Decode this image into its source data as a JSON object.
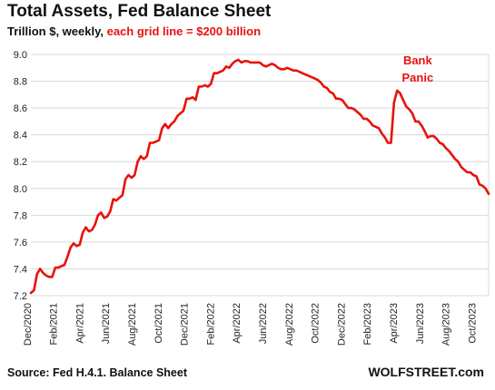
{
  "header": {
    "title": "Total Assets, Fed Balance Sheet",
    "subtitle_plain": "Trillion $, weekly, ",
    "subtitle_red": "each grid line = $200 billion"
  },
  "footer": {
    "source": "Source: Fed H.4.1. Balance Sheet",
    "brand": "WOLFSTREET.com"
  },
  "colors": {
    "line": "#e8120c",
    "grid": "#d9d9d9",
    "annotation": "#e8120c"
  },
  "chart_data": {
    "type": "line",
    "title": "Total Assets, Fed Balance Sheet",
    "subtitle": "Trillion $, weekly, each grid line = $200 billion",
    "ylim": [
      7.2,
      9.0
    ],
    "yticks": [
      "7.2",
      "7.4",
      "7.6",
      "7.8",
      "8.0",
      "8.2",
      "8.4",
      "8.6",
      "8.8",
      "9.0"
    ],
    "xticks": [
      "Dec/2020",
      "Feb/2021",
      "Apr/2021",
      "Jun/2021",
      "Aug/2021",
      "Oct/2021",
      "Dec/2021",
      "Feb/2022",
      "Apr/2022",
      "Jun/2022",
      "Aug/2022",
      "Oct/2022",
      "Dec/2022",
      "Feb/2023",
      "Apr/2023",
      "Jun/2023",
      "Aug/2023",
      "Oct/2023"
    ],
    "grid": true,
    "annotations": [
      {
        "lines": [
          "Bank",
          "Panic"
        ],
        "x": "2023-03-15"
      }
    ],
    "series": [
      {
        "points": [
          [
            "2020-12-02",
            7.22
          ],
          [
            "2020-12-09",
            7.24
          ],
          [
            "2020-12-16",
            7.36
          ],
          [
            "2020-12-23",
            7.4
          ],
          [
            "2020-12-30",
            7.37
          ],
          [
            "2021-01-06",
            7.35
          ],
          [
            "2021-01-13",
            7.34
          ],
          [
            "2021-01-20",
            7.34
          ],
          [
            "2021-01-27",
            7.41
          ],
          [
            "2021-02-03",
            7.41
          ],
          [
            "2021-02-10",
            7.42
          ],
          [
            "2021-02-17",
            7.43
          ],
          [
            "2021-02-24",
            7.49
          ],
          [
            "2021-03-03",
            7.56
          ],
          [
            "2021-03-10",
            7.59
          ],
          [
            "2021-03-17",
            7.57
          ],
          [
            "2021-03-24",
            7.58
          ],
          [
            "2021-03-31",
            7.67
          ],
          [
            "2021-04-07",
            7.71
          ],
          [
            "2021-04-14",
            7.68
          ],
          [
            "2021-04-21",
            7.69
          ],
          [
            "2021-04-28",
            7.73
          ],
          [
            "2021-05-05",
            7.8
          ],
          [
            "2021-05-12",
            7.82
          ],
          [
            "2021-05-19",
            7.78
          ],
          [
            "2021-05-26",
            7.79
          ],
          [
            "2021-06-02",
            7.83
          ],
          [
            "2021-06-09",
            7.92
          ],
          [
            "2021-06-16",
            7.91
          ],
          [
            "2021-06-23",
            7.93
          ],
          [
            "2021-06-30",
            7.95
          ],
          [
            "2021-07-07",
            8.07
          ],
          [
            "2021-07-14",
            8.1
          ],
          [
            "2021-07-21",
            8.08
          ],
          [
            "2021-07-28",
            8.1
          ],
          [
            "2021-08-04",
            8.2
          ],
          [
            "2021-08-11",
            8.24
          ],
          [
            "2021-08-18",
            8.22
          ],
          [
            "2021-08-25",
            8.24
          ],
          [
            "2021-09-01",
            8.34
          ],
          [
            "2021-09-08",
            8.34
          ],
          [
            "2021-09-15",
            8.35
          ],
          [
            "2021-09-22",
            8.36
          ],
          [
            "2021-09-29",
            8.45
          ],
          [
            "2021-10-06",
            8.48
          ],
          [
            "2021-10-13",
            8.45
          ],
          [
            "2021-10-20",
            8.48
          ],
          [
            "2021-10-27",
            8.5
          ],
          [
            "2021-11-03",
            8.54
          ],
          [
            "2021-11-10",
            8.56
          ],
          [
            "2021-11-17",
            8.58
          ],
          [
            "2021-11-24",
            8.67
          ],
          [
            "2021-12-01",
            8.67
          ],
          [
            "2021-12-08",
            8.68
          ],
          [
            "2021-12-15",
            8.66
          ],
          [
            "2021-12-22",
            8.76
          ],
          [
            "2021-12-29",
            8.76
          ],
          [
            "2022-01-05",
            8.77
          ],
          [
            "2022-01-12",
            8.76
          ],
          [
            "2022-01-19",
            8.78
          ],
          [
            "2022-01-26",
            8.86
          ],
          [
            "2022-02-02",
            8.86
          ],
          [
            "2022-02-09",
            8.87
          ],
          [
            "2022-02-16",
            8.88
          ],
          [
            "2022-02-23",
            8.91
          ],
          [
            "2022-03-02",
            8.9
          ],
          [
            "2022-03-09",
            8.93
          ],
          [
            "2022-03-16",
            8.95
          ],
          [
            "2022-03-23",
            8.96
          ],
          [
            "2022-03-30",
            8.94
          ],
          [
            "2022-04-06",
            8.95
          ],
          [
            "2022-04-13",
            8.95
          ],
          [
            "2022-04-20",
            8.94
          ],
          [
            "2022-04-27",
            8.94
          ],
          [
            "2022-05-04",
            8.94
          ],
          [
            "2022-05-11",
            8.94
          ],
          [
            "2022-05-18",
            8.92
          ],
          [
            "2022-05-25",
            8.91
          ],
          [
            "2022-06-01",
            8.92
          ],
          [
            "2022-06-08",
            8.93
          ],
          [
            "2022-06-15",
            8.92
          ],
          [
            "2022-06-22",
            8.9
          ],
          [
            "2022-06-29",
            8.89
          ],
          [
            "2022-07-06",
            8.89
          ],
          [
            "2022-07-13",
            8.9
          ],
          [
            "2022-07-20",
            8.89
          ],
          [
            "2022-07-27",
            8.88
          ],
          [
            "2022-08-03",
            8.88
          ],
          [
            "2022-08-10",
            8.87
          ],
          [
            "2022-08-17",
            8.86
          ],
          [
            "2022-08-24",
            8.85
          ],
          [
            "2022-08-31",
            8.84
          ],
          [
            "2022-09-07",
            8.83
          ],
          [
            "2022-09-14",
            8.82
          ],
          [
            "2022-09-21",
            8.81
          ],
          [
            "2022-09-28",
            8.79
          ],
          [
            "2022-10-05",
            8.76
          ],
          [
            "2022-10-12",
            8.75
          ],
          [
            "2022-10-19",
            8.72
          ],
          [
            "2022-10-26",
            8.71
          ],
          [
            "2022-11-02",
            8.67
          ],
          [
            "2022-11-09",
            8.67
          ],
          [
            "2022-11-16",
            8.66
          ],
          [
            "2022-11-23",
            8.63
          ],
          [
            "2022-11-30",
            8.6
          ],
          [
            "2022-12-07",
            8.6
          ],
          [
            "2022-12-14",
            8.59
          ],
          [
            "2022-12-21",
            8.57
          ],
          [
            "2022-12-28",
            8.55
          ],
          [
            "2023-01-04",
            8.52
          ],
          [
            "2023-01-11",
            8.52
          ],
          [
            "2023-01-18",
            8.5
          ],
          [
            "2023-01-25",
            8.47
          ],
          [
            "2023-02-01",
            8.46
          ],
          [
            "2023-02-08",
            8.45
          ],
          [
            "2023-02-15",
            8.41
          ],
          [
            "2023-02-22",
            8.38
          ],
          [
            "2023-03-01",
            8.34
          ],
          [
            "2023-03-08",
            8.34
          ],
          [
            "2023-03-15",
            8.64
          ],
          [
            "2023-03-22",
            8.73
          ],
          [
            "2023-03-29",
            8.71
          ],
          [
            "2023-04-05",
            8.66
          ],
          [
            "2023-04-12",
            8.61
          ],
          [
            "2023-04-19",
            8.59
          ],
          [
            "2023-04-26",
            8.56
          ],
          [
            "2023-05-03",
            8.5
          ],
          [
            "2023-05-10",
            8.5
          ],
          [
            "2023-05-17",
            8.47
          ],
          [
            "2023-05-24",
            8.43
          ],
          [
            "2023-05-31",
            8.38
          ],
          [
            "2023-06-07",
            8.39
          ],
          [
            "2023-06-14",
            8.39
          ],
          [
            "2023-06-21",
            8.37
          ],
          [
            "2023-06-28",
            8.34
          ],
          [
            "2023-07-05",
            8.33
          ],
          [
            "2023-07-12",
            8.3
          ],
          [
            "2023-07-19",
            8.28
          ],
          [
            "2023-07-26",
            8.25
          ],
          [
            "2023-08-02",
            8.22
          ],
          [
            "2023-08-09",
            8.2
          ],
          [
            "2023-08-16",
            8.16
          ],
          [
            "2023-08-23",
            8.14
          ],
          [
            "2023-08-30",
            8.12
          ],
          [
            "2023-09-06",
            8.12
          ],
          [
            "2023-09-13",
            8.1
          ],
          [
            "2023-09-20",
            8.09
          ],
          [
            "2023-09-27",
            8.03
          ],
          [
            "2023-10-04",
            8.02
          ],
          [
            "2023-10-11",
            8.0
          ],
          [
            "2023-10-18",
            7.96
          ]
        ]
      }
    ]
  }
}
